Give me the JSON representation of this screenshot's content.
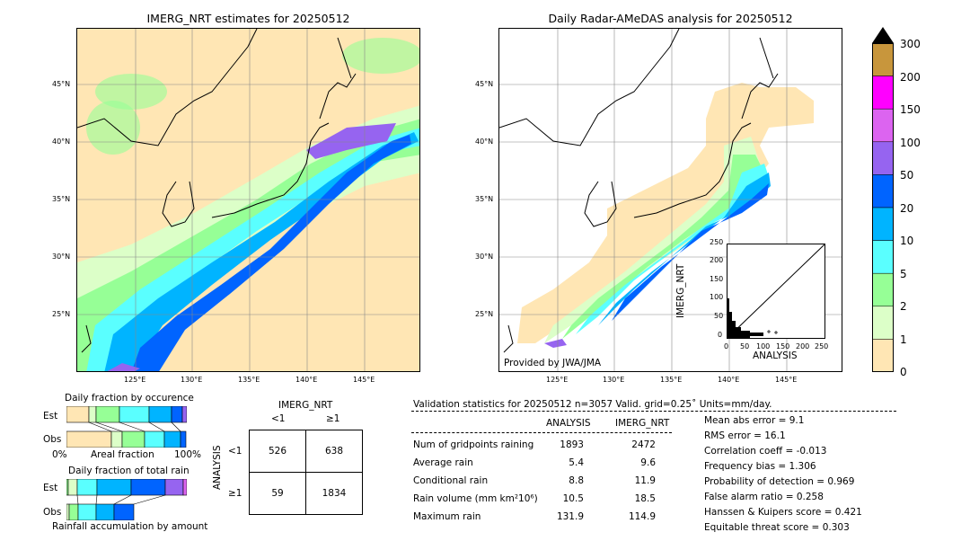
{
  "left_map": {
    "title": "IMERG_NRT estimates for 20250512",
    "lat_ticks": [
      "45°N",
      "40°N",
      "35°N",
      "30°N",
      "25°N"
    ],
    "lon_ticks": [
      "125°E",
      "130°E",
      "135°E",
      "140°E",
      "145°E"
    ]
  },
  "right_map": {
    "title": "Daily Radar-AMeDAS analysis for 20250512",
    "lat_ticks": [
      "45°N",
      "40°N",
      "35°N",
      "30°N",
      "25°N"
    ],
    "lon_ticks": [
      "125°E",
      "130°E",
      "135°E",
      "140°E",
      "145°E"
    ],
    "credit": "Provided by JWA/JMA"
  },
  "scatter_inset": {
    "ylabel": "IMERG_NRT",
    "xlabel": "ANALYSIS",
    "ticks": [
      "0",
      "50",
      "100",
      "150",
      "200",
      "250"
    ]
  },
  "colorbar": {
    "labels": [
      "300",
      "200",
      "150",
      "100",
      "50",
      "20",
      "10",
      "5",
      "2",
      "1",
      "0"
    ],
    "colors": [
      "#c8963c",
      "#ff00ff",
      "#dc64f0",
      "#9664f0",
      "#0064ff",
      "#00b4ff",
      "#5affff",
      "#96ff96",
      "#dcffc8",
      "#ffe6b4"
    ]
  },
  "occurrence": {
    "title": "Daily fraction by occurence",
    "est_label": "Est",
    "obs_label": "Obs",
    "axis_left": "0%",
    "axis_mid": "Areal fraction",
    "axis_right": "100%"
  },
  "total_rain": {
    "title": "Daily fraction of total rain",
    "est_label": "Est",
    "obs_label": "Obs",
    "footer": "Rainfall accumulation by amount"
  },
  "contingency": {
    "title": "IMERG_NRT",
    "col_lt": "<1",
    "col_ge": "≥1",
    "row_axis": "ANALYSIS",
    "row_lt": "<1",
    "row_ge": "≥1",
    "cells": [
      "526",
      "638",
      "59",
      "1834"
    ]
  },
  "validation": {
    "header": "Validation statistics for 20250512  n=3057 Valid. grid=0.25˚ Units=mm/day.",
    "col_analysis": "ANALYSIS",
    "col_imerg": "IMERG_NRT",
    "rows": [
      {
        "label": "Num of gridpoints raining",
        "analysis": "1893",
        "imerg": "2472"
      },
      {
        "label": "Average rain",
        "analysis": "5.4",
        "imerg": "9.6"
      },
      {
        "label": "Conditional rain",
        "analysis": "8.8",
        "imerg": "11.9"
      },
      {
        "label": "Rain volume (mm km²10⁶)",
        "analysis": "10.5",
        "imerg": "18.5"
      },
      {
        "label": "Maximum rain",
        "analysis": "131.9",
        "imerg": "114.9"
      }
    ],
    "scores": [
      "Mean abs error =    9.1",
      "RMS error =   16.1",
      "Correlation coeff = -0.013",
      "Frequency bias =  1.306",
      "Probability of detection =  0.969",
      "False alarm ratio =  0.258",
      "Hanssen & Kuipers score =  0.421",
      "Equitable threat score =  0.303"
    ]
  }
}
